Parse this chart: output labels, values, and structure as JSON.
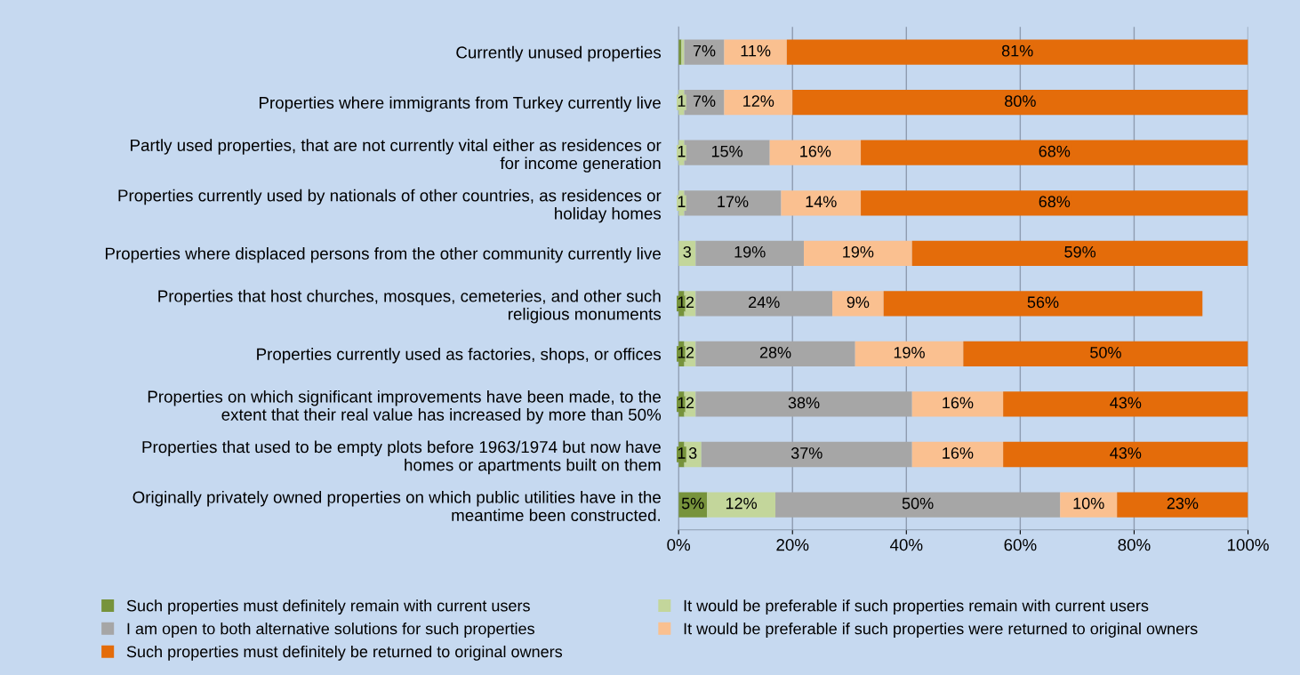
{
  "chart_data": {
    "type": "bar",
    "orientation": "horizontal",
    "stacked": true,
    "categories": [
      "Currently unused properties",
      "Properties where immigrants from Turkey currently live",
      "Partly used properties, that are not currently vital either as residences or\nfor income generation",
      "Properties currently used by nationals of other countries, as residences or\nholiday homes",
      "Properties where displaced persons from the other community currently live",
      "Properties that host churches, mosques, cemeteries, and other such\nreligious monuments",
      "Properties currently used as factories, shops, or offices",
      "Properties on which significant improvements have been made, to the\nextent that their real value has increased by more than 50%",
      "Properties that used to be empty plots before 1963/1974 but now have\nhomes or apartments built on them",
      "Originally privately owned properties on which public utilities have in the\nmeantime been constructed."
    ],
    "series": [
      {
        "name": "Such properties must definitely remain with current users",
        "color": "#77933c",
        "values": [
          0.5,
          0,
          0,
          0,
          0,
          1,
          1,
          1,
          1,
          5
        ],
        "value_labels": [
          null,
          null,
          null,
          null,
          null,
          "1",
          "1",
          "1",
          "1",
          "5%"
        ]
      },
      {
        "name": "It would be preferable if such properties remain with current users",
        "color": "#c3d69b",
        "values": [
          0.5,
          1,
          1,
          1,
          3,
          2,
          2,
          2,
          3,
          12
        ],
        "value_labels": [
          null,
          "1",
          "1",
          "1",
          "3",
          "2",
          "2",
          "2",
          "3",
          "12%"
        ]
      },
      {
        "name": "I am open to both alternative solutions for such properties",
        "color": "#a6a6a6",
        "values": [
          7,
          7,
          15,
          17,
          19,
          24,
          28,
          38,
          37,
          50
        ],
        "value_labels": [
          "7%",
          "7%",
          "15%",
          "17%",
          "19%",
          "24%",
          "28%",
          "38%",
          "37%",
          "50%"
        ]
      },
      {
        "name": "It would be preferable if such properties were returned to original owners",
        "color": "#fac090",
        "values": [
          11,
          12,
          16,
          14,
          19,
          9,
          19,
          16,
          16,
          10
        ],
        "value_labels": [
          "11%",
          "12%",
          "16%",
          "14%",
          "19%",
          "9%",
          "19%",
          "16%",
          "16%",
          "10%"
        ]
      },
      {
        "name": "Such properties must definitely be returned to original owners",
        "color": "#e46c0a",
        "values": [
          81,
          80,
          68,
          68,
          59,
          56,
          50,
          43,
          43,
          23
        ],
        "value_labels": [
          "81%",
          "80%",
          "68%",
          "68%",
          "59%",
          "56%",
          "50%",
          "43%",
          "43%",
          "23%"
        ]
      }
    ],
    "xlim": [
      0,
      100
    ],
    "xticks": [
      {
        "value": 0,
        "label": "0%"
      },
      {
        "value": 20,
        "label": "20%"
      },
      {
        "value": 40,
        "label": "40%"
      },
      {
        "value": 60,
        "label": "60%"
      },
      {
        "value": 80,
        "label": "80%"
      },
      {
        "value": 100,
        "label": "100%"
      }
    ],
    "grid": "x",
    "legend": "bottom"
  }
}
